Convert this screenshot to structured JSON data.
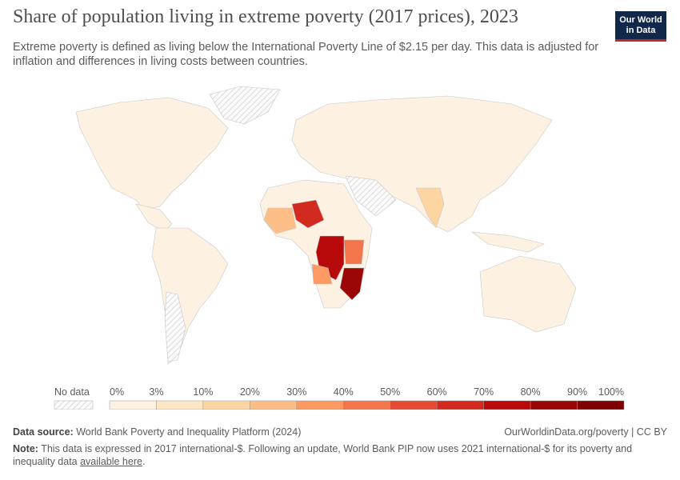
{
  "header": {
    "title": "Share of population living in extreme poverty (2017 prices), 2023",
    "subtitle": "Extreme poverty is defined as living below the International Poverty Line of $2.15 per day. This data is adjusted for inflation and differences in living costs between countries.",
    "logo": [
      "Our World",
      "in Data"
    ]
  },
  "legend": {
    "no_data": "No data",
    "ticks": [
      "0%",
      "3%",
      "10%",
      "20%",
      "30%",
      "40%",
      "50%",
      "60%",
      "70%",
      "80%",
      "90%",
      "100%"
    ],
    "colors": [
      "#fdf1e1",
      "#fde6c6",
      "#fdd5a3",
      "#fdbd86",
      "#fc9a62",
      "#f3754b",
      "#e54a34",
      "#d32a20",
      "#b80a0a",
      "#9a0505",
      "#7e0000"
    ]
  },
  "footer": {
    "source_label": "Data source:",
    "source": "World Bank Poverty and Inequality Platform (2024)",
    "credit": "OurWorldinData.org/poverty | CC BY",
    "note_label": "Note:",
    "note": "This data is expressed in 2017 international-$. Following an update, World Bank PIP now uses 2021 international-$ for its poverty and inequality data",
    "note_link": "available here",
    "note_end": "."
  }
}
